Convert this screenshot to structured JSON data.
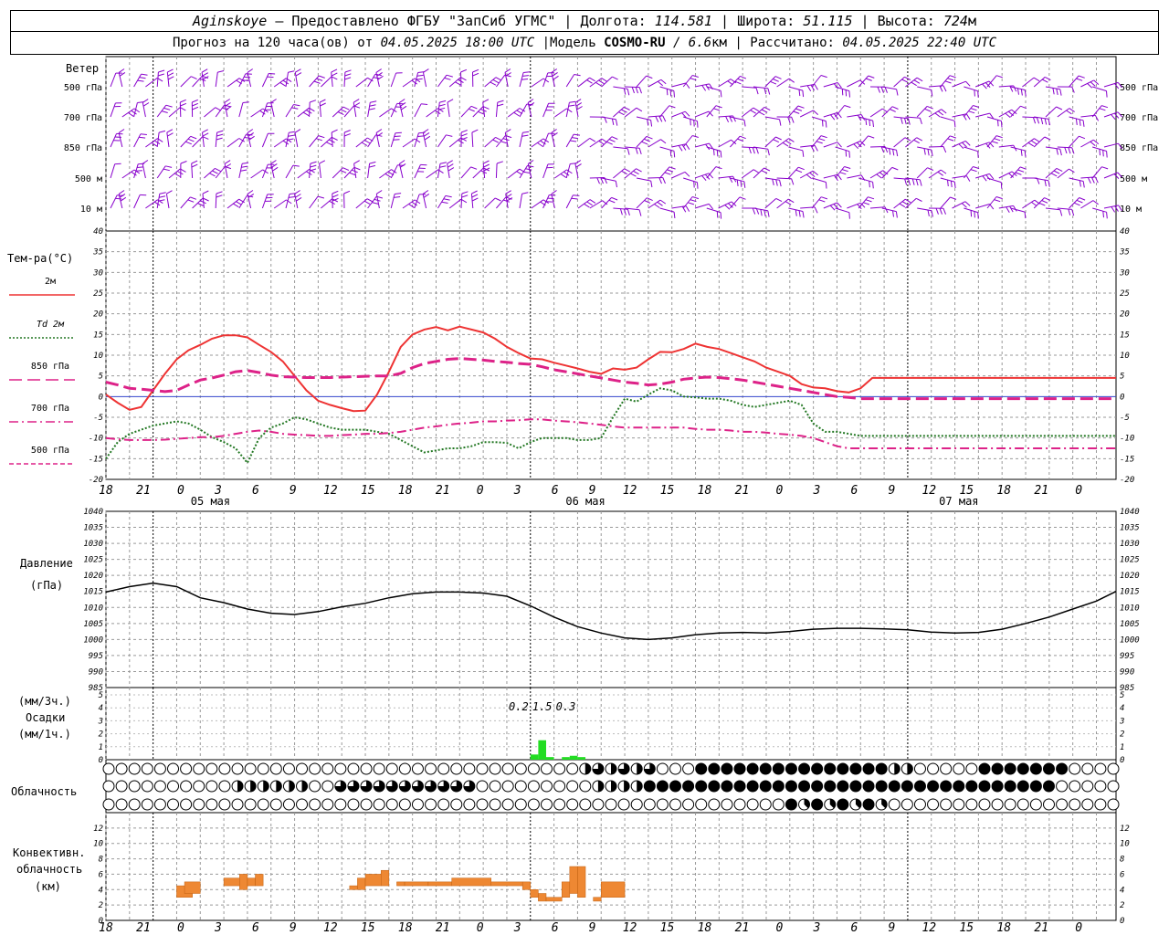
{
  "header": {
    "station": "Aginskoye",
    "dash": " – ",
    "provider": "Предоставлено ФГБУ \"ЗапСиб УГМС\"",
    "lon_label": "Долгота:",
    "lon_value": "114.581",
    "lat_label": "Широта:",
    "lat_value": "51.115",
    "alt_label": "Высота:",
    "alt_value": "724",
    "alt_unit": "м",
    "forecast_prefix": "Прогноз на 120 часа(ов) от",
    "forecast_start": "04.05.2025 18:00 UTC",
    "model_label": "Модель",
    "model_name": "COSMO-RU",
    "model_res": "/ 6.6",
    "model_res_unit": "км",
    "computed_label": "Рассчитано:",
    "computed_at": "04.05.2025 22:40 UTC",
    "sep": "|"
  },
  "chart_data": [
    {
      "type": "line",
      "panel": "wind",
      "title": "Ветер",
      "levels": [
        "500 гПа",
        "700 гПа",
        "850 гПа",
        "500 м",
        "10 м"
      ],
      "color": "#8800cc"
    },
    {
      "type": "line",
      "panel": "temperature",
      "title": "Тем-ра(°C)",
      "ylim": [
        -20,
        40
      ],
      "yticks": [
        -20,
        -15,
        -10,
        -5,
        0,
        5,
        10,
        15,
        20,
        25,
        30,
        35,
        40
      ],
      "xticks": [
        "18",
        "21",
        "0",
        "3",
        "6",
        "9",
        "12",
        "15",
        "18",
        "21",
        "0",
        "3",
        "6",
        "9",
        "12",
        "15",
        "18",
        "21",
        "0",
        "3",
        "6",
        "9",
        "12",
        "15",
        "18",
        "21",
        "0"
      ],
      "day_labels": [
        "05 мая",
        "06 мая",
        "07 мая"
      ],
      "x_hours": [
        0,
        1.5,
        3,
        4.5,
        6,
        7.5,
        9,
        10.5,
        12,
        13.5,
        15,
        16.5,
        18,
        19.5,
        21,
        22.5,
        24,
        25.5,
        27,
        28.5,
        30,
        31.5,
        33,
        34.5,
        36,
        37.5,
        39,
        40.5,
        42,
        43.5,
        45,
        46.5,
        48,
        49.5,
        51,
        52.5,
        54,
        55.5,
        57,
        58.5,
        60,
        61.5,
        63,
        64.5,
        66,
        67.5,
        69,
        70.5,
        72,
        73.5,
        75,
        76.5,
        78,
        79.5,
        81,
        82.5,
        84,
        85.5,
        87,
        88.5,
        90,
        91.5,
        93,
        94.5,
        96,
        97.5,
        99,
        100.5,
        102,
        103.5,
        105,
        106.5,
        108,
        109.5,
        111,
        112.5,
        114,
        115.5,
        117,
        118.5,
        120,
        121.5,
        124,
        125.5,
        127,
        128.5
      ],
      "series": [
        {
          "name": "2м",
          "color": "#ee3333",
          "dash": "solid",
          "values": [
            0.5,
            -1.5,
            -3.2,
            -2.5,
            1.5,
            5.5,
            9.0,
            11.2,
            12.5,
            14.0,
            14.8,
            14.8,
            14.3,
            12.5,
            10.8,
            8.5,
            5.0,
            1.5,
            -1.0,
            -2.0,
            -2.8,
            -3.5,
            -3.4,
            0.5,
            6.0,
            12.0,
            15.0,
            16.2,
            16.8,
            16.0,
            16.9,
            16.2,
            15.5,
            14.0,
            12.0,
            10.5,
            9.2,
            9.0,
            8.2,
            7.5,
            6.8,
            6.0,
            5.5,
            6.8,
            6.5,
            7.0,
            9.0,
            10.8,
            10.7,
            11.5,
            12.8,
            12.0,
            11.5,
            10.5,
            9.5,
            8.5,
            7.0,
            6.0,
            5.0,
            3.0,
            2.2,
            2.0,
            1.3,
            1.0,
            2.0,
            4.5,
            4.5,
            4.5,
            4.5,
            4.5,
            4.5,
            4.5,
            4.5,
            4.5,
            4.5,
            4.5,
            4.5,
            4.5,
            4.5,
            4.5,
            4.5,
            4.5,
            4.5,
            4.5,
            4.5,
            4.5
          ]
        },
        {
          "name": "Td  2м",
          "color": "#227722",
          "dash": "dotted",
          "values": [
            -15.0,
            -11.0,
            -9.0,
            -8.0,
            -7.0,
            -6.5,
            -6.0,
            -6.5,
            -8.0,
            -9.8,
            -11.0,
            -12.5,
            -16.0,
            -10.0,
            -7.5,
            -6.5,
            -5.0,
            -5.5,
            -6.5,
            -7.5,
            -8.0,
            -8.0,
            -8.0,
            -8.5,
            -9.0,
            -10.5,
            -12.0,
            -13.5,
            -13.0,
            -12.5,
            -12.5,
            -12.0,
            -11.0,
            -11.0,
            -11.2,
            -12.5,
            -11.0,
            -10.0,
            -10.0,
            -10.0,
            -10.5,
            -10.5,
            -10.0,
            -5.0,
            -0.5,
            -1.2,
            0.5,
            2.0,
            1.5,
            0.0,
            -0.2,
            -0.5,
            -0.5,
            -1.0,
            -2.0,
            -2.5,
            -2.0,
            -1.5,
            -1.0,
            -2.0,
            -6.5,
            -8.5,
            -8.5,
            -9.0,
            -9.5,
            -9.5,
            -9.5,
            -9.5,
            -9.5,
            -9.5,
            -9.5,
            -9.5,
            -9.5,
            -9.5,
            -9.5,
            -9.5,
            -9.5,
            -9.5,
            -9.5,
            -9.5,
            -9.5,
            -9.5,
            -9.5,
            -9.5,
            -9.5,
            -9.5
          ]
        },
        {
          "name": "850 гПа",
          "color": "#dd2288",
          "dash": "long-dash",
          "values": [
            3.5,
            2.8,
            2.0,
            1.8,
            1.5,
            1.2,
            1.5,
            2.8,
            4.0,
            4.5,
            5.2,
            6.0,
            6.3,
            5.8,
            5.2,
            4.8,
            4.7,
            4.6,
            4.6,
            4.6,
            4.7,
            4.8,
            4.9,
            5.0,
            5.0,
            5.6,
            7.0,
            8.0,
            8.5,
            9.0,
            9.2,
            9.0,
            8.8,
            8.5,
            8.3,
            8.0,
            7.8,
            7.2,
            6.5,
            6.0,
            5.5,
            5.0,
            4.5,
            4.0,
            3.5,
            3.2,
            2.8,
            3.0,
            3.5,
            4.2,
            4.5,
            4.7,
            4.6,
            4.3,
            4.0,
            3.5,
            3.0,
            2.5,
            2.0,
            1.5,
            1.0,
            0.5,
            0.0,
            -0.2,
            -0.5,
            -0.5,
            -0.5,
            -0.5,
            -0.5,
            -0.5,
            -0.5,
            -0.5,
            -0.5,
            -0.5,
            -0.5,
            -0.5,
            -0.5,
            -0.5,
            -0.5,
            -0.5,
            -0.5,
            -0.5,
            -0.5,
            -0.5,
            -0.5,
            -0.5
          ]
        },
        {
          "name": "700 гПа",
          "color": "#dd2288",
          "dash": "dash-dot",
          "values": [
            -10.0,
            -10.3,
            -10.5,
            -10.5,
            -10.5,
            -10.4,
            -10.2,
            -10.0,
            -9.8,
            -9.8,
            -9.5,
            -9.0,
            -8.5,
            -8.2,
            -8.5,
            -9.0,
            -9.2,
            -9.3,
            -9.5,
            -9.5,
            -9.3,
            -9.2,
            -9.0,
            -9.0,
            -8.8,
            -8.5,
            -8.0,
            -7.5,
            -7.2,
            -6.8,
            -6.5,
            -6.3,
            -6.0,
            -6.0,
            -5.8,
            -5.7,
            -5.5,
            -5.5,
            -5.8,
            -6.0,
            -6.2,
            -6.5,
            -6.8,
            -7.2,
            -7.5,
            -7.5,
            -7.5,
            -7.5,
            -7.5,
            -7.5,
            -7.8,
            -8.0,
            -8.0,
            -8.2,
            -8.5,
            -8.5,
            -8.7,
            -9.0,
            -9.2,
            -9.5,
            -10.0,
            -11.0,
            -12.0,
            -12.5,
            -12.5,
            -12.5,
            -12.5,
            -12.5,
            -12.5,
            -12.5,
            -12.5,
            -12.5,
            -12.5,
            -12.5,
            -12.5,
            -12.5,
            -12.5,
            -12.5,
            -12.5,
            -12.5,
            -12.5,
            -12.5,
            -12.5,
            -12.5,
            -12.5,
            -12.5
          ]
        },
        {
          "name": "500 гПа",
          "color": "#dd2288",
          "dash": "short-dash",
          "values": []
        }
      ]
    },
    {
      "type": "line",
      "panel": "pressure",
      "title": "Давление",
      "unit": "(гПа)",
      "ylim": [
        985,
        1040
      ],
      "yticks": [
        985,
        990,
        995,
        1000,
        1005,
        1010,
        1015,
        1020,
        1025,
        1030,
        1035,
        1040
      ],
      "x_hours": [
        0,
        3,
        6,
        9,
        12,
        15,
        18,
        21,
        24,
        27,
        30,
        33,
        36,
        39,
        42,
        45,
        48,
        51,
        54,
        57,
        60,
        63,
        66,
        69,
        72,
        75,
        78,
        81,
        84,
        87,
        90,
        93,
        96,
        99,
        102,
        105,
        108,
        111,
        114,
        117,
        120,
        123,
        126,
        128.5
      ],
      "series": [
        {
          "name": "давление",
          "color": "#000000",
          "values": [
            1014.8,
            1016.5,
            1017.6,
            1016.5,
            1013.0,
            1011.5,
            1009.5,
            1008.2,
            1007.8,
            1008.7,
            1010.2,
            1011.3,
            1013.0,
            1014.3,
            1014.8,
            1014.8,
            1014.5,
            1013.5,
            1010.5,
            1007.0,
            1004.0,
            1002.0,
            1000.5,
            1000.0,
            1000.5,
            1001.5,
            1002.0,
            1002.2,
            1002.0,
            1002.5,
            1003.2,
            1003.5,
            1003.5,
            1003.3,
            1003.0,
            1002.3,
            1002.0,
            1002.2,
            1003.2,
            1005.0,
            1007.0,
            1009.5,
            1012.0,
            1015.0
          ]
        }
      ]
    },
    {
      "type": "bar",
      "panel": "precipitation",
      "title": "Осадки",
      "unit_top": "(мм/3ч.)",
      "unit_bottom": "(мм/1ч.)",
      "ylim": [
        0,
        5
      ],
      "bars": [
        {
          "hour": 54,
          "value": 0.4
        },
        {
          "hour": 55,
          "value": 1.5
        },
        {
          "hour": 56,
          "value": 0.2
        },
        {
          "hour": 58,
          "value": 0.2
        },
        {
          "hour": 59,
          "value": 0.3
        },
        {
          "hour": 60,
          "value": 0.2
        }
      ],
      "labels": [
        {
          "hour": 52.5,
          "text": "0.2"
        },
        {
          "hour": 55.5,
          "text": "1.5"
        },
        {
          "hour": 58.5,
          "text": "0.3"
        }
      ],
      "color": "#22dd22"
    },
    {
      "type": "table",
      "panel": "cloudiness",
      "title": "Облачность",
      "rows": 3,
      "symbols": "circle-fill-octas"
    },
    {
      "type": "bar",
      "panel": "convective",
      "title": "Конвективн. облачность",
      "unit": "(км)",
      "ylim": [
        0,
        14
      ],
      "yticks": [
        0,
        2,
        4,
        6,
        8,
        10,
        12
      ],
      "blocks": [
        {
          "h0": 9,
          "h1": 11,
          "lo": 3.0,
          "hi": 4.5
        },
        {
          "h0": 10,
          "h1": 12,
          "lo": 3.5,
          "hi": 5.0
        },
        {
          "h0": 15,
          "h1": 17,
          "lo": 4.5,
          "hi": 5.5
        },
        {
          "h0": 17,
          "h1": 18,
          "lo": 4.0,
          "hi": 6.0
        },
        {
          "h0": 18,
          "h1": 19,
          "lo": 4.5,
          "hi": 5.5
        },
        {
          "h0": 19,
          "h1": 20,
          "lo": 4.5,
          "hi": 6.0
        },
        {
          "h0": 31,
          "h1": 32,
          "lo": 4.0,
          "hi": 4.5
        },
        {
          "h0": 32,
          "h1": 33,
          "lo": 4.0,
          "hi": 5.5
        },
        {
          "h0": 33,
          "h1": 35,
          "lo": 4.5,
          "hi": 6.0
        },
        {
          "h0": 35,
          "h1": 36,
          "lo": 4.5,
          "hi": 6.5
        },
        {
          "h0": 37,
          "h1": 38,
          "lo": 4.5,
          "hi": 5.0
        },
        {
          "h0": 38,
          "h1": 41,
          "lo": 4.5,
          "hi": 5.0
        },
        {
          "h0": 41,
          "h1": 44,
          "lo": 4.5,
          "hi": 5.0
        },
        {
          "h0": 44,
          "h1": 49,
          "lo": 4.5,
          "hi": 5.5
        },
        {
          "h0": 49,
          "h1": 53,
          "lo": 4.5,
          "hi": 5.0
        },
        {
          "h0": 53,
          "h1": 54,
          "lo": 4.0,
          "hi": 5.0
        },
        {
          "h0": 54,
          "h1": 55,
          "lo": 3.0,
          "hi": 4.0
        },
        {
          "h0": 55,
          "h1": 56,
          "lo": 2.5,
          "hi": 3.5
        },
        {
          "h0": 56,
          "h1": 58,
          "lo": 2.5,
          "hi": 3.0
        },
        {
          "h0": 58,
          "h1": 59,
          "lo": 3.0,
          "hi": 5.0
        },
        {
          "h0": 59,
          "h1": 60,
          "lo": 3.5,
          "hi": 7.0
        },
        {
          "h0": 60,
          "h1": 61,
          "lo": 3.0,
          "hi": 7.0
        },
        {
          "h0": 62,
          "h1": 63,
          "lo": 2.5,
          "hi": 3.0
        },
        {
          "h0": 63,
          "h1": 66,
          "lo": 3.0,
          "hi": 5.0
        }
      ],
      "color": "#ee8833"
    }
  ]
}
